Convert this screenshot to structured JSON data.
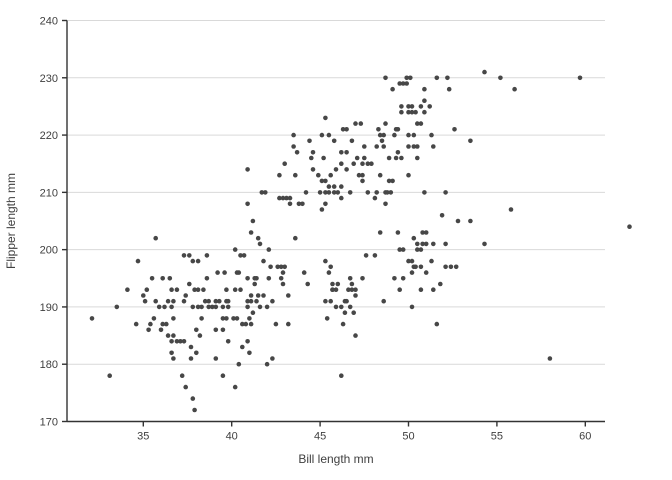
{
  "figure": {
    "background": "#ffffff"
  },
  "chart_data": {
    "type": "scatter",
    "title": "",
    "xlabel": "Bill length mm",
    "ylabel": "Flipper length mm",
    "xlim": [
      30.7,
      61.1
    ],
    "ylim": [
      170,
      240
    ],
    "x_ticks": [
      35,
      40,
      45,
      50,
      55,
      60
    ],
    "y_ticks": [
      170,
      180,
      190,
      200,
      210,
      220,
      230,
      240
    ],
    "grid": "horizontal-only",
    "legend": "none",
    "point_color": "#474747",
    "axis_color": "#333333",
    "gridline_color": "#d9d9d9",
    "label_color": "#404040",
    "points": [
      [
        35.7,
        202
      ],
      [
        37.3,
        199
      ],
      [
        37.6,
        199
      ],
      [
        38.6,
        199
      ],
      [
        34.7,
        198
      ],
      [
        37.8,
        198
      ],
      [
        38.1,
        198
      ],
      [
        35.5,
        195
      ],
      [
        36.1,
        195
      ],
      [
        36.5,
        195
      ],
      [
        38.6,
        195
      ],
      [
        37.6,
        194
      ],
      [
        38.1,
        193
      ],
      [
        38.4,
        193
      ],
      [
        34.1,
        193
      ],
      [
        35.0,
        192
      ],
      [
        35.2,
        193
      ],
      [
        36.6,
        193
      ],
      [
        36.9,
        193
      ],
      [
        37.4,
        192
      ],
      [
        37.9,
        193
      ],
      [
        37.3,
        191
      ],
      [
        33.5,
        190
      ],
      [
        35.1,
        191
      ],
      [
        35.7,
        191
      ],
      [
        35.9,
        190
      ],
      [
        36.2,
        190
      ],
      [
        36.4,
        191
      ],
      [
        36.6,
        190
      ],
      [
        36.7,
        191
      ],
      [
        37.8,
        190
      ],
      [
        38.1,
        190
      ],
      [
        38.3,
        190
      ],
      [
        38.5,
        191
      ],
      [
        38.7,
        191
      ],
      [
        38.7,
        190
      ],
      [
        38.9,
        190
      ],
      [
        32.1,
        188
      ],
      [
        34.6,
        187
      ],
      [
        35.3,
        186
      ],
      [
        35.4,
        187
      ],
      [
        35.6,
        188
      ],
      [
        36.1,
        187
      ],
      [
        36.3,
        187
      ],
      [
        36.0,
        186
      ],
      [
        36.7,
        188
      ],
      [
        38.3,
        188
      ],
      [
        38.0,
        186
      ],
      [
        38.2,
        185
      ],
      [
        36.4,
        185
      ],
      [
        36.6,
        184
      ],
      [
        36.7,
        185
      ],
      [
        36.9,
        184
      ],
      [
        37.1,
        184
      ],
      [
        37.3,
        184
      ],
      [
        37.7,
        183
      ],
      [
        36.6,
        182
      ],
      [
        36.7,
        181
      ],
      [
        37.7,
        181
      ],
      [
        38.0,
        182
      ],
      [
        33.1,
        178
      ],
      [
        37.2,
        178
      ],
      [
        37.4,
        176
      ],
      [
        37.8,
        174
      ],
      [
        37.9,
        172
      ],
      [
        39.7,
        193
      ],
      [
        40.2,
        193
      ],
      [
        40.5,
        193
      ],
      [
        41.1,
        192
      ],
      [
        41.5,
        192
      ],
      [
        41.8,
        192
      ],
      [
        43.2,
        192
      ],
      [
        45.7,
        193
      ],
      [
        46.6,
        193
      ],
      [
        46.8,
        193
      ],
      [
        47.0,
        193
      ],
      [
        39.1,
        191
      ],
      [
        39.3,
        191
      ],
      [
        39.7,
        191
      ],
      [
        39.8,
        191
      ],
      [
        40.9,
        191
      ],
      [
        41.1,
        191
      ],
      [
        41.4,
        191
      ],
      [
        42.3,
        191
      ],
      [
        45.3,
        191
      ],
      [
        45.6,
        191
      ],
      [
        46.4,
        191
      ],
      [
        46.5,
        191
      ],
      [
        46.7,
        190
      ],
      [
        47.0,
        192
      ],
      [
        39.1,
        190
      ],
      [
        39.5,
        190
      ],
      [
        39.8,
        190
      ],
      [
        40.9,
        190
      ],
      [
        41.2,
        189
      ],
      [
        41.6,
        190
      ],
      [
        42.0,
        190
      ],
      [
        45.9,
        190
      ],
      [
        46.2,
        190
      ],
      [
        46.4,
        189
      ],
      [
        46.9,
        189
      ],
      [
        39.5,
        188
      ],
      [
        39.7,
        188
      ],
      [
        40.1,
        188
      ],
      [
        40.3,
        188
      ],
      [
        40.6,
        187
      ],
      [
        40.8,
        187
      ],
      [
        41.0,
        188
      ],
      [
        41.1,
        187
      ],
      [
        42.5,
        187
      ],
      [
        43.2,
        187
      ],
      [
        45.4,
        188
      ],
      [
        46.3,
        187
      ],
      [
        39.1,
        186
      ],
      [
        39.5,
        186
      ],
      [
        39.8,
        184
      ],
      [
        40.9,
        184
      ],
      [
        47.0,
        185
      ],
      [
        40.6,
        183
      ],
      [
        41.0,
        182
      ],
      [
        39.1,
        181
      ],
      [
        42.3,
        181
      ],
      [
        42.0,
        180
      ],
      [
        40.4,
        180
      ],
      [
        39.5,
        178
      ],
      [
        46.2,
        178
      ],
      [
        40.2,
        176
      ],
      [
        48.6,
        191
      ],
      [
        50.2,
        190
      ],
      [
        51.6,
        187
      ],
      [
        58.0,
        181
      ],
      [
        40.9,
        214
      ],
      [
        43.0,
        215
      ],
      [
        44.5,
        216
      ],
      [
        44.6,
        214
      ],
      [
        45.2,
        216
      ],
      [
        42.7,
        213
      ],
      [
        43.6,
        213
      ],
      [
        44.9,
        213
      ],
      [
        45.1,
        212
      ],
      [
        45.3,
        212
      ],
      [
        45.6,
        213
      ],
      [
        45.9,
        214
      ],
      [
        46.2,
        215
      ],
      [
        46.5,
        214
      ],
      [
        46.9,
        215
      ],
      [
        47.1,
        216
      ],
      [
        47.4,
        215
      ],
      [
        47.2,
        213
      ],
      [
        47.4,
        213
      ],
      [
        45.5,
        211
      ],
      [
        45.8,
        211
      ],
      [
        46.2,
        211
      ],
      [
        41.7,
        210
      ],
      [
        41.9,
        210
      ],
      [
        44.2,
        210
      ],
      [
        45.0,
        210
      ],
      [
        45.3,
        210
      ],
      [
        45.5,
        210
      ],
      [
        45.8,
        210
      ],
      [
        46.0,
        210
      ],
      [
        46.2,
        209
      ],
      [
        46.7,
        210
      ],
      [
        42.7,
        209
      ],
      [
        42.9,
        209
      ],
      [
        43.1,
        209
      ],
      [
        43.3,
        209
      ],
      [
        43.3,
        208
      ],
      [
        43.8,
        208
      ],
      [
        44.0,
        208
      ],
      [
        40.9,
        208
      ],
      [
        45.3,
        208
      ],
      [
        45.1,
        207
      ],
      [
        41.2,
        205
      ],
      [
        41.1,
        203
      ],
      [
        41.5,
        202
      ],
      [
        41.6,
        201
      ],
      [
        43.6,
        202
      ],
      [
        42.1,
        200
      ],
      [
        40.2,
        200
      ],
      [
        40.5,
        199
      ],
      [
        40.7,
        199
      ],
      [
        45.3,
        198
      ],
      [
        45.6,
        197
      ],
      [
        41.8,
        198
      ],
      [
        42.2,
        197
      ],
      [
        42.6,
        197
      ],
      [
        42.8,
        197
      ],
      [
        42.9,
        196
      ],
      [
        43.0,
        197
      ],
      [
        39.2,
        196
      ],
      [
        39.6,
        196
      ],
      [
        40.3,
        196
      ],
      [
        40.4,
        196
      ],
      [
        40.9,
        195
      ],
      [
        41.3,
        195
      ],
      [
        41.4,
        195
      ],
      [
        41.3,
        194
      ],
      [
        42.1,
        195
      ],
      [
        42.8,
        195
      ],
      [
        42.9,
        194
      ],
      [
        44.1,
        196
      ],
      [
        44.3,
        194
      ],
      [
        45.5,
        196
      ],
      [
        45.7,
        194
      ],
      [
        46.0,
        194
      ],
      [
        45.7,
        193
      ],
      [
        45.9,
        193
      ],
      [
        46.7,
        195
      ],
      [
        46.8,
        194
      ],
      [
        45.3,
        223
      ],
      [
        46.3,
        221
      ],
      [
        46.5,
        221
      ],
      [
        47.0,
        222
      ],
      [
        47.3,
        222
      ],
      [
        43.5,
        220
      ],
      [
        45.1,
        220
      ],
      [
        45.5,
        220
      ],
      [
        44.4,
        219
      ],
      [
        45.8,
        219
      ],
      [
        46.8,
        219
      ],
      [
        43.5,
        218
      ],
      [
        43.7,
        217
      ],
      [
        44.6,
        217
      ],
      [
        46.2,
        217
      ],
      [
        46.5,
        217
      ],
      [
        54.3,
        231
      ],
      [
        55.2,
        230
      ],
      [
        48.7,
        230
      ],
      [
        49.9,
        230
      ],
      [
        50.1,
        230
      ],
      [
        49.7,
        229
      ],
      [
        49.9,
        229
      ],
      [
        49.1,
        228
      ],
      [
        49.5,
        229
      ],
      [
        50.9,
        228
      ],
      [
        51.6,
        230
      ],
      [
        52.2,
        230
      ],
      [
        52.3,
        228
      ],
      [
        59.7,
        230
      ],
      [
        56.0,
        228
      ],
      [
        50.9,
        226
      ],
      [
        49.6,
        225
      ],
      [
        49.6,
        224
      ],
      [
        50.0,
        225
      ],
      [
        50.0,
        224
      ],
      [
        50.2,
        225
      ],
      [
        50.2,
        224
      ],
      [
        50.4,
        224
      ],
      [
        50.7,
        225
      ],
      [
        51.2,
        225
      ],
      [
        50.9,
        224
      ],
      [
        50.5,
        222
      ],
      [
        50.7,
        222
      ],
      [
        48.3,
        221
      ],
      [
        48.7,
        222
      ],
      [
        49.3,
        221
      ],
      [
        49.4,
        221
      ],
      [
        48.4,
        220
      ],
      [
        48.6,
        220
      ],
      [
        49.2,
        220
      ],
      [
        50.0,
        220
      ],
      [
        50.3,
        220
      ],
      [
        51.3,
        220
      ],
      [
        52.6,
        221
      ],
      [
        53.5,
        219
      ],
      [
        47.5,
        218
      ],
      [
        48.2,
        218
      ],
      [
        48.5,
        219
      ],
      [
        48.6,
        218
      ],
      [
        49.4,
        217
      ],
      [
        50.0,
        218
      ],
      [
        50.3,
        218
      ],
      [
        50.5,
        218
      ],
      [
        51.4,
        218
      ],
      [
        47.5,
        216
      ],
      [
        47.7,
        215
      ],
      [
        47.9,
        215
      ],
      [
        48.9,
        216
      ],
      [
        49.3,
        216
      ],
      [
        49.6,
        216
      ],
      [
        50.5,
        216
      ],
      [
        48.4,
        213
      ],
      [
        50.0,
        213
      ],
      [
        47.4,
        212
      ],
      [
        48.9,
        212
      ],
      [
        49.1,
        212
      ],
      [
        47.7,
        210
      ],
      [
        48.2,
        210
      ],
      [
        48.7,
        210
      ],
      [
        48.8,
        210
      ],
      [
        49.0,
        210
      ],
      [
        48.1,
        209
      ],
      [
        50.9,
        210
      ],
      [
        52.1,
        210
      ],
      [
        48.7,
        208
      ],
      [
        51.9,
        206
      ],
      [
        52.8,
        205
      ],
      [
        53.5,
        205
      ],
      [
        55.8,
        207
      ],
      [
        48.4,
        203
      ],
      [
        49.4,
        203
      ],
      [
        50.8,
        203
      ],
      [
        51.0,
        203
      ],
      [
        50.3,
        202
      ],
      [
        50.5,
        201
      ],
      [
        50.8,
        201
      ],
      [
        51.0,
        201
      ],
      [
        51.4,
        201
      ],
      [
        52.1,
        201
      ],
      [
        54.3,
        201
      ],
      [
        50.5,
        200
      ],
      [
        50.7,
        200
      ],
      [
        49.5,
        200
      ],
      [
        49.7,
        200
      ],
      [
        47.6,
        199
      ],
      [
        48.1,
        199
      ],
      [
        50.0,
        198
      ],
      [
        50.2,
        198
      ],
      [
        50.3,
        197
      ],
      [
        50.4,
        197
      ],
      [
        50.7,
        197
      ],
      [
        51.0,
        196
      ],
      [
        51.3,
        198
      ],
      [
        52.1,
        197
      ],
      [
        52.4,
        197
      ],
      [
        52.7,
        197
      ],
      [
        49.2,
        195
      ],
      [
        49.7,
        195
      ],
      [
        50.2,
        196
      ],
      [
        51.8,
        194
      ],
      [
        49.5,
        193
      ],
      [
        50.7,
        193
      ],
      [
        51.4,
        193
      ],
      [
        47.4,
        195
      ],
      [
        62.5,
        204
      ]
    ]
  }
}
